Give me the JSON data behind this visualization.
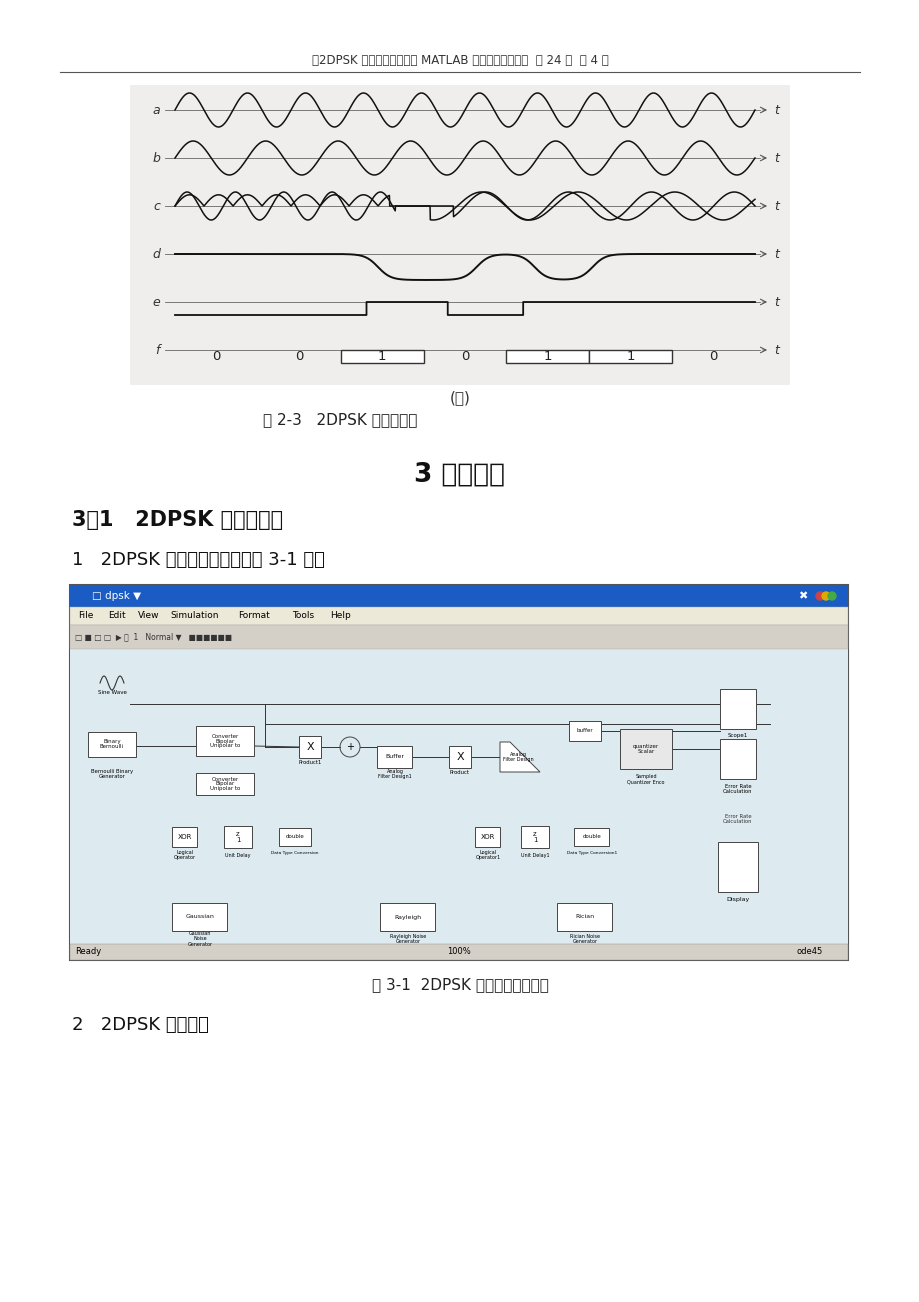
{
  "page_header": "《2DPSK 调制与解调系统的 MATLAB 实现及性能分析》  公 24 页  第 4 页",
  "fig_b_label": "(ｂ)",
  "fig_2_3_caption": "图 2-3   2DPSK 的相干解调",
  "section_title": "3 系统设计",
  "subsection_title": "3．1   2DPSK 调制与解调",
  "item1_text": "1   2DPSK 调制与解调电路如图 3-1 所示",
  "fig_3_1_caption": "图 3-1  2DPSK 调制与解调电路图",
  "item2_text": "2   2DPSK 调制部分",
  "bg_color": "#ffffff",
  "header_color": "#444444",
  "wave_color": "#111111",
  "sim_title_bg": "#1a5bc4",
  "sim_menu_bg": "#ece9d8",
  "sim_toolbar_bg": "#d4d0c8",
  "sim_content_bg": "#c8dce8",
  "sim_border": "#003399"
}
